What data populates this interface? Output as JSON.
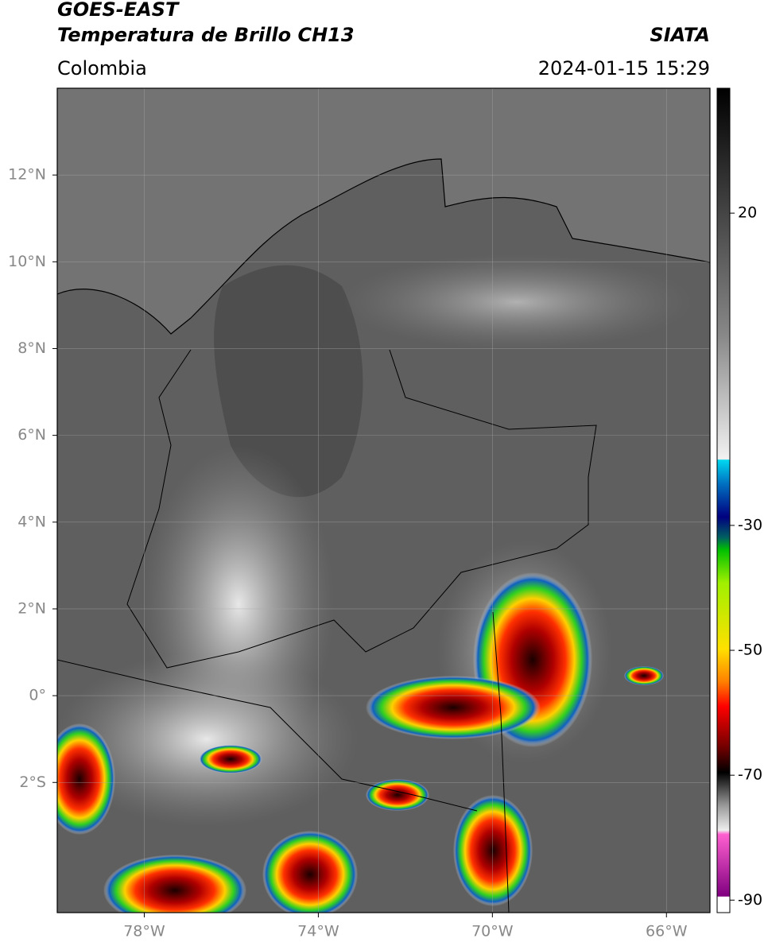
{
  "header": {
    "satellite": "GOES-EAST",
    "product": "Temperatura de Brillo CH13",
    "region": "Colombia",
    "source": "SIATA",
    "datetime": "2024-01-15 15:29"
  },
  "map": {
    "xlim": [
      -80,
      -65
    ],
    "ylim": [
      -5,
      14
    ],
    "xticks": [
      {
        "value": -78,
        "label": "78°W"
      },
      {
        "value": -74,
        "label": "74°W"
      },
      {
        "value": -70,
        "label": "70°W"
      },
      {
        "value": -66,
        "label": "66°W"
      }
    ],
    "yticks": [
      {
        "value": 12,
        "label": "12°N"
      },
      {
        "value": 10,
        "label": "10°N"
      },
      {
        "value": 8,
        "label": "8°N"
      },
      {
        "value": 6,
        "label": "6°N"
      },
      {
        "value": 4,
        "label": "4°N"
      },
      {
        "value": 2,
        "label": "2°N"
      },
      {
        "value": 0,
        "label": "0°"
      },
      {
        "value": -2,
        "label": "2°S"
      }
    ],
    "grid": true
  },
  "colorbar": {
    "lim": [
      -92,
      40
    ],
    "ticks": [
      20,
      -30,
      -50,
      -70,
      -90
    ]
  }
}
